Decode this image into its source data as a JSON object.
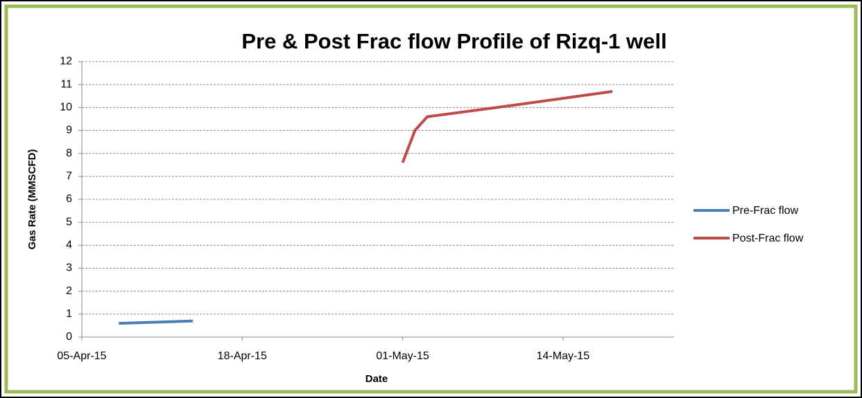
{
  "chart_data": {
    "type": "line",
    "title": "Pre & Post Frac flow Profile of Rizq-1 well",
    "x_label": "Date",
    "y_label": "Gas Rate (MMSCFD)",
    "xlim": [
      "2015-04-05",
      "2015-05-23"
    ],
    "xticks": [
      {
        "value": "2015-04-05",
        "label": "05-Apr-15"
      },
      {
        "value": "2015-04-18",
        "label": "18-Apr-15"
      },
      {
        "value": "2015-05-01",
        "label": "01-May-15"
      },
      {
        "value": "2015-05-14",
        "label": "14-May-15"
      }
    ],
    "ylim": [
      0,
      12
    ],
    "yticks": [
      0,
      1,
      2,
      3,
      4,
      5,
      6,
      7,
      8,
      9,
      10,
      11,
      12
    ],
    "grid": true,
    "legend": "right",
    "series": [
      {
        "name": "Pre-Frac flow",
        "color": "#4a7ebb",
        "x": [
          "2015-04-08",
          "2015-04-14"
        ],
        "values": [
          0.6,
          0.7
        ]
      },
      {
        "name": "Post-Frac flow",
        "color": "#be4b48",
        "x": [
          "2015-05-01",
          "2015-05-02",
          "2015-05-03",
          "2015-05-10",
          "2015-05-18"
        ],
        "values": [
          7.6,
          9.0,
          9.6,
          10.1,
          10.7
        ]
      }
    ]
  }
}
